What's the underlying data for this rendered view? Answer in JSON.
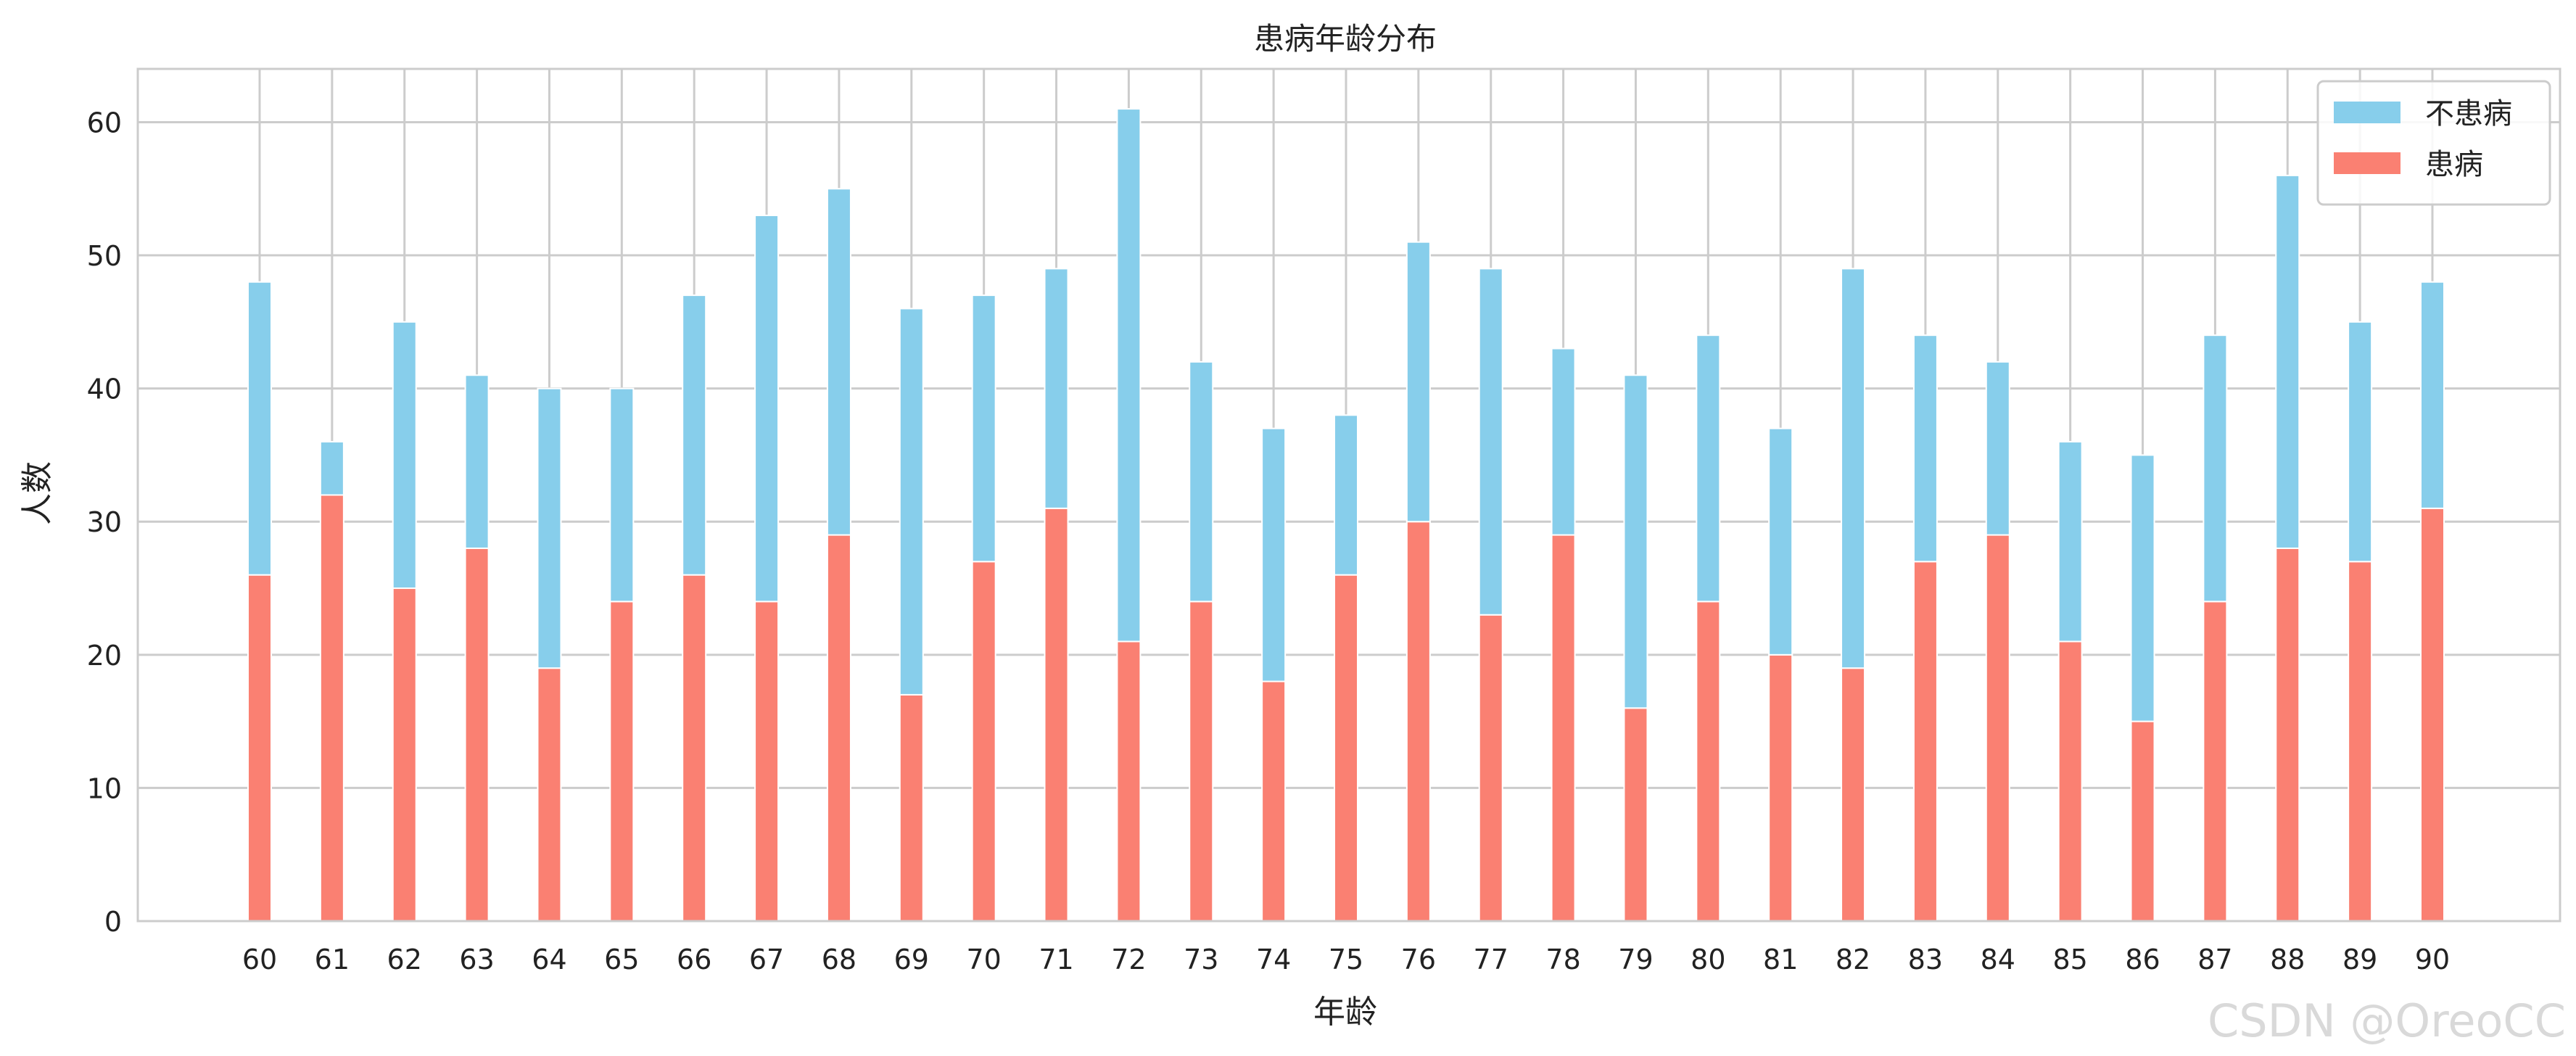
{
  "chart_data": {
    "type": "bar",
    "stacked": true,
    "title": "患病年龄分布",
    "xlabel": "年龄",
    "ylabel": "人数",
    "ylim": [
      0,
      64
    ],
    "yticks": [
      0,
      10,
      20,
      30,
      40,
      50,
      60
    ],
    "grid": true,
    "legend_position": "top-right",
    "categories": [
      "60",
      "61",
      "62",
      "63",
      "64",
      "65",
      "66",
      "67",
      "68",
      "69",
      "70",
      "71",
      "72",
      "73",
      "74",
      "75",
      "76",
      "77",
      "78",
      "79",
      "80",
      "81",
      "82",
      "83",
      "84",
      "85",
      "86",
      "87",
      "88",
      "89",
      "90"
    ],
    "series": [
      {
        "name": "患病",
        "color": "#fa8072",
        "values": [
          26,
          32,
          25,
          28,
          19,
          24,
          26,
          24,
          29,
          17,
          27,
          31,
          21,
          24,
          18,
          26,
          30,
          23,
          29,
          16,
          24,
          20,
          19,
          27,
          29,
          21,
          15,
          24,
          28,
          27,
          31
        ]
      },
      {
        "name": "不患病",
        "color": "#87ceeb",
        "values": [
          22,
          4,
          20,
          13,
          21,
          16,
          21,
          29,
          26,
          29,
          20,
          18,
          40,
          18,
          19,
          12,
          21,
          26,
          14,
          25,
          20,
          17,
          30,
          17,
          13,
          15,
          20,
          20,
          28,
          18,
          17
        ]
      }
    ],
    "legend_order": [
      "不患病",
      "患病"
    ]
  },
  "watermark": "CSDN @OreoCC"
}
